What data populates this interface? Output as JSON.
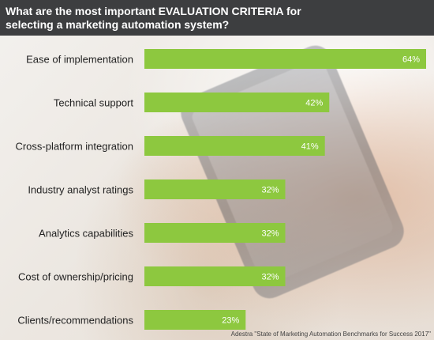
{
  "header": {
    "title_line1": "What are the most important EVALUATION CRITERIA for",
    "title_line2": "selecting a marketing automation system?"
  },
  "chart_data": {
    "type": "bar",
    "orientation": "horizontal",
    "categories": [
      "Ease of implementation",
      "Technical support",
      "Cross-platform integration",
      "Industry analyst ratings",
      "Analytics capabilities",
      "Cost of ownership/pricing",
      "Clients/recommendations"
    ],
    "values": [
      64,
      42,
      41,
      32,
      32,
      32,
      23
    ],
    "value_labels": [
      "64%",
      "42%",
      "41%",
      "32%",
      "32%",
      "32%",
      "23%"
    ],
    "title": "What are the most important EVALUATION CRITERIA for selecting a marketing automation system?",
    "xlim": [
      0,
      64
    ],
    "bar_color": "#8dc83f",
    "grid": false,
    "legend": "none"
  },
  "source": "Adestra \"State of Marketing Automation Benchmarks for Success 2017\""
}
